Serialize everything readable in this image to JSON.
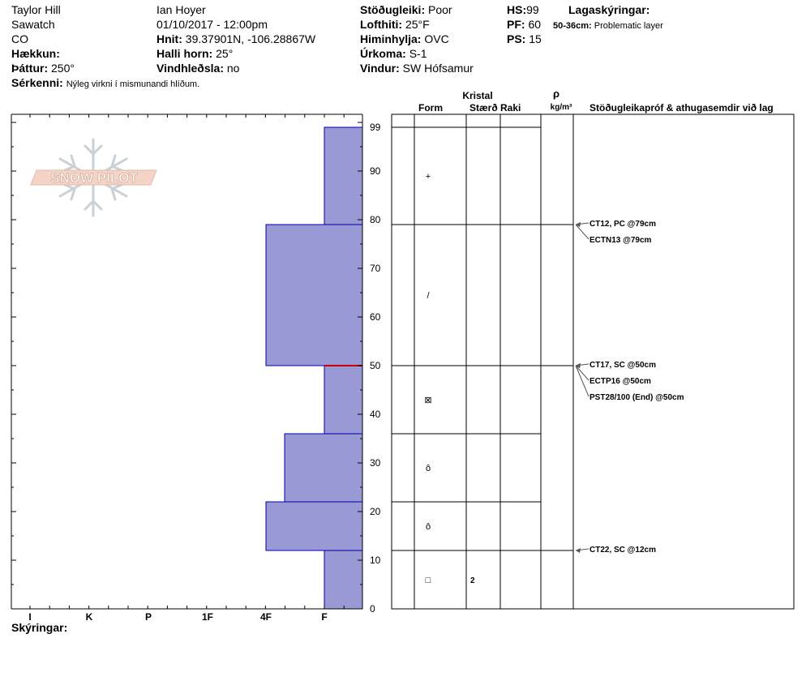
{
  "header": {
    "location": "Taylor Hill",
    "range": "Sawatch",
    "state": "CO",
    "elevation_label": "Hækkun:",
    "aspect_label": "Þáttur:",
    "aspect_value": "250°",
    "remarks_label": "Sérkenni:",
    "remarks_value": "Nýleg virkni í mismunandi hlíðum.",
    "observer": "Ian Hoyer",
    "datetime": "01/10/2017 - 12:00pm",
    "coords_label": "Hnit:",
    "coords_value": "39.37901N, -106.28867W",
    "slope_label": "Halli horn:",
    "slope_value": "25°",
    "wind_loading_label": "Vindhleðsla:",
    "wind_loading_value": "no",
    "stability_label": "Stöðugleiki:",
    "stability_value": "Poor",
    "air_temp_label": "Lofthiti:",
    "air_temp_value": "25°F",
    "sky_label": "Himinhylja:",
    "sky_value": "OVC",
    "precip_label": "Úrkoma:",
    "precip_value": "S-1",
    "wind_label": "Vindur:",
    "wind_value": "SW Hófsamur",
    "hs_label": "HS:",
    "hs_value": "99",
    "pf_label": "PF:",
    "pf_value": "60",
    "ps_label": "PS:",
    "ps_value": "15",
    "layer_notes_title": "Lagaskýringar:",
    "layer_note_range": "50-36cm:",
    "layer_note_text": "Problematic layer"
  },
  "logo_text": "SNOW PILOT",
  "table_headers": {
    "crystal": "Kristal",
    "form": "Form",
    "size": "Stærð",
    "moisture": "Raki",
    "rho": "ρ",
    "density_unit": "kg/m³",
    "tests": "Stöðugleikapróf & athugasemdir við lag"
  },
  "footer": {
    "notes_label": "Skýringar:"
  },
  "colors": {
    "layer_fill": "#9999d6",
    "layer_stroke": "#0000aa",
    "weak_layer": "#cc0000",
    "test_arrow": "#555555"
  },
  "chart_data": {
    "type": "bar",
    "orientation": "horizontal-steps",
    "ylabel": "",
    "ylim": [
      0,
      99
    ],
    "y_ticks": [
      0,
      10,
      20,
      30,
      40,
      50,
      60,
      70,
      80,
      90,
      99
    ],
    "x_categories": [
      "I",
      "K",
      "P",
      "1F",
      "4F",
      "F"
    ],
    "layers": [
      {
        "bottom": 0,
        "top": 12,
        "hardness": "F",
        "form": "□",
        "size": "2",
        "form_icon": "square-icon"
      },
      {
        "bottom": 12,
        "top": 22,
        "hardness": "4F",
        "form": "ô",
        "size": "",
        "form_icon": "depth-hoar-cup-icon"
      },
      {
        "bottom": 22,
        "top": 36,
        "hardness": "4F-",
        "form": "ô",
        "size": "",
        "form_icon": "depth-hoar-cup-icon"
      },
      {
        "bottom": 36,
        "top": 50,
        "hardness": "F",
        "form": "⊠",
        "size": "",
        "form_icon": "mixed-form-icon"
      },
      {
        "bottom": 50,
        "top": 79,
        "hardness": "4F",
        "form": "/",
        "size": "",
        "form_icon": "decomposed-particle-icon"
      },
      {
        "bottom": 79,
        "top": 99,
        "hardness": "F",
        "form": "+",
        "size": "",
        "form_icon": "new-snow-icon"
      }
    ],
    "weak_layer_depth": 50,
    "stability_tests": [
      {
        "depth": 79,
        "text": "CT12, PC @79cm"
      },
      {
        "depth": 79,
        "text": "ECTN13 @79cm"
      },
      {
        "depth": 50,
        "text": "CT17, SC @50cm"
      },
      {
        "depth": 50,
        "text": "ECTP16 @50cm"
      },
      {
        "depth": 50,
        "text": "PST28/100 (End) @50cm"
      },
      {
        "depth": 12,
        "text": "CT22, SC @12cm"
      }
    ]
  }
}
